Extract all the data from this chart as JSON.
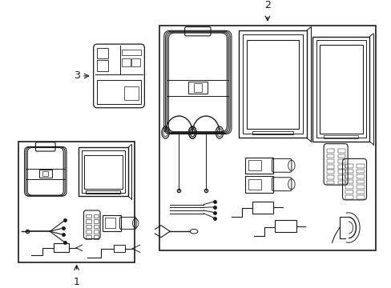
{
  "bg_color": "#ffffff",
  "line_color": "#1a1a1a",
  "label_1": "1",
  "label_2": "2",
  "label_3": "3",
  "figsize": [
    4.89,
    3.6
  ],
  "dpi": 100
}
